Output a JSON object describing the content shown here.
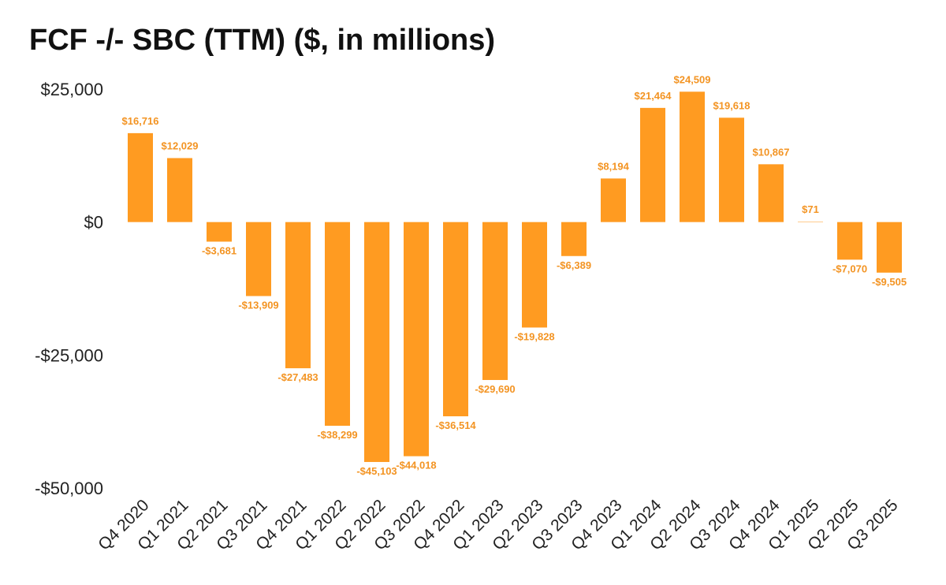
{
  "chart_data": {
    "type": "bar",
    "title": "FCF -/- SBC (TTM) ($, in millions)",
    "xlabel": "",
    "ylabel": "",
    "ylim": [
      -50000,
      25000
    ],
    "yticks": [
      {
        "value": 25000,
        "label": "$25,000"
      },
      {
        "value": 0,
        "label": "$0"
      },
      {
        "value": -25000,
        "label": "-$25,000"
      },
      {
        "value": -50000,
        "label": "-$50,000"
      }
    ],
    "grid": false,
    "bar_color": "#FF9B21",
    "label_color": "#F39423",
    "categories": [
      "Q4 2020",
      "Q1 2021",
      "Q2 2021",
      "Q3 2021",
      "Q4 2021",
      "Q1 2022",
      "Q2 2022",
      "Q3 2022",
      "Q4 2022",
      "Q1 2023",
      "Q2 2023",
      "Q3 2023",
      "Q4 2023",
      "Q1 2024",
      "Q2 2024",
      "Q3 2024",
      "Q4 2024",
      "Q1 2025",
      "Q2 2025",
      "Q3 2025"
    ],
    "values": [
      16716,
      12029,
      -3681,
      -13909,
      -27483,
      -38299,
      -45103,
      -44018,
      -36514,
      -29690,
      -19828,
      -6389,
      8194,
      21464,
      24509,
      19618,
      10867,
      71,
      -7070,
      -9505
    ],
    "data_labels": [
      "$16,716",
      "$12,029",
      "-$3,681",
      "-$13,909",
      "-$27,483",
      "-$38,299",
      "-$45,103",
      "-$44,018",
      "-$36,514",
      "-$29,690",
      "-$19,828",
      "-$6,389",
      "$8,194",
      "$21,464",
      "$24,509",
      "$19,618",
      "$10,867",
      "$71",
      "-$7,070",
      "-$9,505"
    ]
  }
}
